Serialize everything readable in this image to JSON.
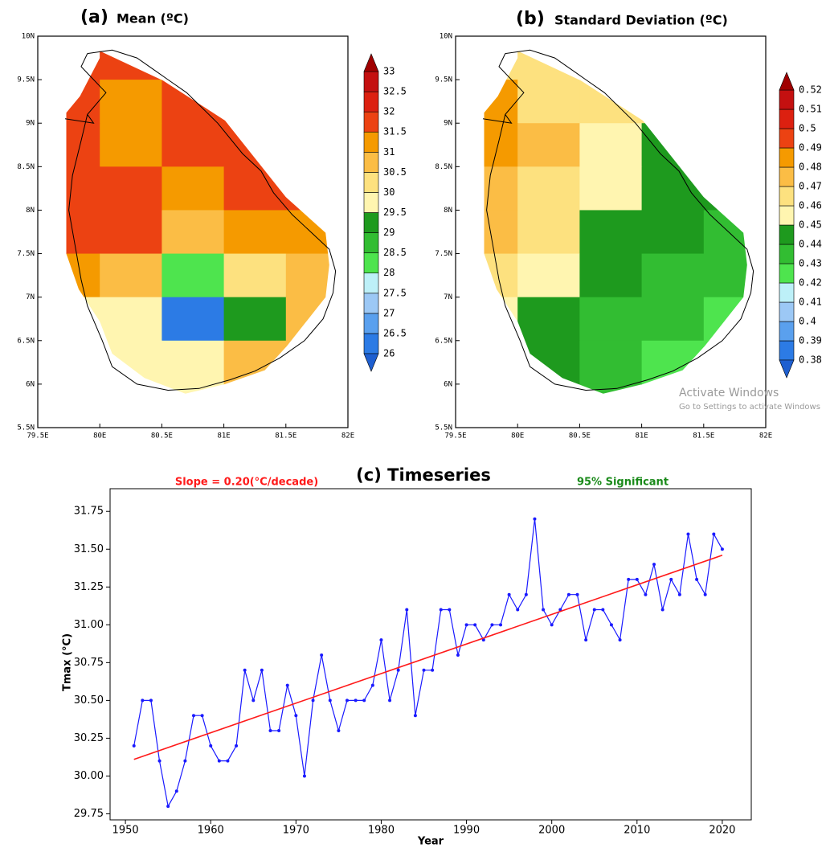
{
  "chart_data": [
    {
      "type": "grid_map",
      "panel_label": "(a)",
      "title": "Mean (ºC)",
      "xlim": [
        79.5,
        82
      ],
      "ylim": [
        5.5,
        10
      ],
      "xticks": [
        {
          "value": 79.5,
          "label": "79.5E"
        },
        {
          "value": 80,
          "label": "80E"
        },
        {
          "value": 80.5,
          "label": "80.5E"
        },
        {
          "value": 81,
          "label": "81E"
        },
        {
          "value": 81.5,
          "label": "81.5E"
        },
        {
          "value": 82,
          "label": "82E"
        }
      ],
      "yticks": [
        {
          "value": 5.5,
          "label": "5.5N"
        },
        {
          "value": 6,
          "label": "6N"
        },
        {
          "value": 6.5,
          "label": "6.5N"
        },
        {
          "value": 7,
          "label": "7N"
        },
        {
          "value": 7.5,
          "label": "7.5N"
        },
        {
          "value": 8,
          "label": "8N"
        },
        {
          "value": 8.5,
          "label": "8.5N"
        },
        {
          "value": 9,
          "label": "9N"
        },
        {
          "value": 9.5,
          "label": "9.5N"
        },
        {
          "value": 10,
          "label": "10N"
        }
      ],
      "levels": [
        26,
        26.5,
        27,
        27.5,
        28,
        28.5,
        29,
        29.5,
        30,
        30.5,
        31,
        31.5,
        32,
        32.5,
        33
      ],
      "colors": [
        "#1e5fd0",
        "#2c7be5",
        "#5aa0ee",
        "#9cc8f5",
        "#bdf0f8",
        "#4ee44e",
        "#32bd32",
        "#1e9a1e",
        "#fff5b0",
        "#fde17f",
        "#fbbd45",
        "#f59a00",
        "#ec4212",
        "#dc2010",
        "#c41010",
        "#a00000"
      ],
      "lon": [
        79.5,
        80,
        80.5,
        79.5,
        80,
        80.5,
        81,
        79.5,
        80,
        80.5,
        81,
        79.5,
        80,
        80.5,
        81,
        81.5,
        79.5,
        80,
        80.5,
        81,
        81.5,
        79.5,
        80,
        80.5,
        81,
        81.5,
        79.5,
        80,
        80.5,
        81,
        81.5,
        80,
        80.5,
        81,
        81.5,
        80.5,
        81
      ],
      "lat": [
        9.5,
        9.5,
        9.5,
        9,
        9,
        9,
        9,
        8.5,
        8.5,
        8.5,
        8.5,
        8,
        8,
        8,
        8,
        8,
        7.5,
        7.5,
        7.5,
        7.5,
        7.5,
        7,
        7,
        7,
        7,
        7,
        6.5,
        6.5,
        6.5,
        6.5,
        6.5,
        6,
        6,
        6,
        6,
        5.5,
        5.5
      ],
      "values": [
        31.75,
        31.75,
        31.75,
        31.75,
        31.25,
        31.75,
        31.75,
        31.75,
        31.25,
        31.75,
        31.75,
        31.75,
        31.75,
        31.25,
        31.75,
        31.75,
        31.75,
        31.75,
        30.75,
        31.25,
        31.25,
        31.25,
        30.75,
        28.25,
        30.25,
        30.75,
        29.75,
        29.75,
        26.25,
        29.25,
        30.75,
        29.75,
        29.75,
        30.75,
        30.75,
        29.75,
        30.75
      ]
    },
    {
      "type": "grid_map",
      "panel_label": "(b)",
      "title": "Standard Deviation (ºC)",
      "xlim": [
        79.5,
        82
      ],
      "ylim": [
        5.5,
        10
      ],
      "xticks": [
        {
          "value": 79.5,
          "label": "79.5E"
        },
        {
          "value": 80,
          "label": "80E"
        },
        {
          "value": 80.5,
          "label": "80.5E"
        },
        {
          "value": 81,
          "label": "81E"
        },
        {
          "value": 81.5,
          "label": "81.5E"
        },
        {
          "value": 82,
          "label": "82E"
        }
      ],
      "yticks": [
        {
          "value": 5.5,
          "label": "5.5N"
        },
        {
          "value": 6,
          "label": "6N"
        },
        {
          "value": 6.5,
          "label": "6.5N"
        },
        {
          "value": 7,
          "label": "7N"
        },
        {
          "value": 7.5,
          "label": "7.5N"
        },
        {
          "value": 8,
          "label": "8N"
        },
        {
          "value": 8.5,
          "label": "8.5N"
        },
        {
          "value": 9,
          "label": "9N"
        },
        {
          "value": 9.5,
          "label": "9.5N"
        },
        {
          "value": 10,
          "label": "10N"
        }
      ],
      "levels": [
        0.38,
        0.39,
        0.4,
        0.41,
        0.42,
        0.43,
        0.44,
        0.45,
        0.46,
        0.47,
        0.48,
        0.49,
        0.5,
        0.51,
        0.52
      ],
      "colors": [
        "#1e5fd0",
        "#2c7be5",
        "#5aa0ee",
        "#9cc8f5",
        "#bdf0f8",
        "#4ee44e",
        "#32bd32",
        "#1e9a1e",
        "#fff5b0",
        "#fde17f",
        "#fbbd45",
        "#f59a00",
        "#ec4212",
        "#dc2010",
        "#c41010",
        "#a00000"
      ],
      "lon": [
        79.5,
        80,
        80.5,
        79.5,
        80,
        80.5,
        81,
        79.5,
        80,
        80.5,
        81,
        79.5,
        80,
        80.5,
        81,
        81.5,
        79.5,
        80,
        80.5,
        81,
        81.5,
        79.5,
        80,
        80.5,
        81,
        81.5,
        79.5,
        80,
        80.5,
        81,
        81.5,
        80,
        80.5,
        81,
        81.5,
        80.5,
        81
      ],
      "lat": [
        9.5,
        9.5,
        9.5,
        9,
        9,
        9,
        9,
        8.5,
        8.5,
        8.5,
        8.5,
        8,
        8,
        8,
        8,
        8,
        7.5,
        7.5,
        7.5,
        7.5,
        7.5,
        7,
        7,
        7,
        7,
        7,
        6.5,
        6.5,
        6.5,
        6.5,
        6.5,
        6,
        6,
        6,
        6,
        5.5,
        5.5
      ],
      "values": [
        0.465,
        0.465,
        0.465,
        0.485,
        0.465,
        0.465,
        0.465,
        0.485,
        0.475,
        0.455,
        0.445,
        0.475,
        0.465,
        0.455,
        0.445,
        0.445,
        0.475,
        0.465,
        0.445,
        0.445,
        0.435,
        0.465,
        0.455,
        0.445,
        0.435,
        0.435,
        0.455,
        0.445,
        0.435,
        0.435,
        0.425,
        0.445,
        0.435,
        0.425,
        0.425,
        0.435,
        0.425
      ]
    },
    {
      "type": "line",
      "title": "(c) Timeseries",
      "xlabel": "Year",
      "ylabel": "Tmax (°C)",
      "annotations": [
        {
          "text": "Slope = 0.20(°C/decade)",
          "color": "#ff1a1a"
        },
        {
          "text": "95% Significant",
          "color": "#1a8a1a"
        }
      ],
      "xlim": [
        1948.2,
        2023.4
      ],
      "ylim": [
        29.71,
        31.9
      ],
      "xticks": [
        1950,
        1960,
        1970,
        1980,
        1990,
        2000,
        2010,
        2020
      ],
      "yticks": [
        29.75,
        {
          "value": 30,
          "label": "30.00"
        },
        30.25,
        {
          "value": 30.5,
          "label": "30.50"
        },
        30.75,
        {
          "value": 31,
          "label": "31.00"
        },
        31.25,
        {
          "value": 31.5,
          "label": "31.50"
        },
        31.75
      ],
      "x": [
        1951,
        1952,
        1953,
        1954,
        1955,
        1956,
        1957,
        1958,
        1959,
        1960,
        1961,
        1962,
        1963,
        1964,
        1965,
        1966,
        1967,
        1968,
        1969,
        1970,
        1971,
        1972,
        1973,
        1974,
        1975,
        1976,
        1977,
        1978,
        1979,
        1980,
        1981,
        1982,
        1983,
        1984,
        1985,
        1986,
        1987,
        1988,
        1989,
        1990,
        1991,
        1992,
        1993,
        1994,
        1995,
        1996,
        1997,
        1998,
        1999,
        2000,
        2001,
        2002,
        2003,
        2004,
        2005,
        2006,
        2007,
        2008,
        2009,
        2010,
        2011,
        2012,
        2013,
        2014,
        2015,
        2016,
        2017,
        2018,
        2019,
        2020
      ],
      "series": [
        {
          "color": "#1a1aff",
          "values": [
            30.2,
            30.5,
            30.5,
            30.1,
            29.8,
            29.9,
            30.1,
            30.4,
            30.4,
            30.2,
            30.1,
            30.1,
            30.2,
            30.7,
            30.5,
            30.7,
            30.3,
            30.3,
            30.6,
            30.4,
            30.0,
            30.5,
            30.8,
            30.5,
            30.3,
            30.5,
            30.5,
            30.5,
            30.6,
            30.9,
            30.5,
            30.7,
            31.1,
            30.4,
            30.7,
            30.7,
            31.1,
            31.1,
            30.8,
            31.0,
            31.0,
            30.9,
            31.0,
            31.0,
            31.2,
            31.1,
            31.2,
            31.7,
            31.1,
            31.0,
            31.1,
            31.2,
            31.2,
            30.9,
            31.1,
            31.1,
            31.0,
            30.9,
            31.3,
            31.3,
            31.2,
            31.4,
            31.1,
            31.3,
            31.2,
            31.6,
            31.3,
            31.2,
            31.6,
            31.5
          ]
        }
      ],
      "trend": {
        "color": "#ff1a1a",
        "x": [
          1951,
          2020
        ],
        "values": [
          30.11,
          31.46
        ]
      }
    }
  ],
  "watermark": [
    "Activate Windows",
    "Go to Settings to activate Windows"
  ]
}
